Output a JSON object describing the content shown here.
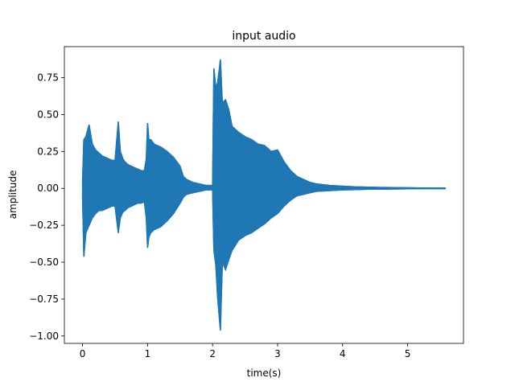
{
  "chart_data": {
    "type": "line",
    "title": "input audio",
    "xlabel": "time(s)",
    "ylabel": "amplitude",
    "xlim": [
      -0.28,
      5.86
    ],
    "ylim": [
      -1.05,
      0.96
    ],
    "x_ticks": [
      0,
      1,
      2,
      3,
      4,
      5
    ],
    "x_tick_labels": [
      "0",
      "1",
      "2",
      "3",
      "4",
      "5"
    ],
    "y_ticks": [
      -1.0,
      -0.75,
      -0.5,
      -0.25,
      0.0,
      0.25,
      0.5,
      0.75
    ],
    "y_tick_labels": [
      "−1.00",
      "−0.75",
      "−0.50",
      "−0.25",
      "0.00",
      "0.25",
      "0.50",
      "0.75"
    ],
    "grid": false,
    "series": [
      {
        "color": "#1f77b4",
        "upper": {
          "x": [
            0.0,
            0.02,
            0.05,
            0.1,
            0.15,
            0.2,
            0.25,
            0.3,
            0.35,
            0.4,
            0.45,
            0.5,
            0.55,
            0.58,
            0.62,
            0.65,
            0.7,
            0.75,
            0.8,
            0.85,
            0.9,
            0.95,
            0.98,
            1.0,
            1.02,
            1.05,
            1.1,
            1.15,
            1.2,
            1.3,
            1.4,
            1.5,
            1.55,
            1.6,
            1.7,
            1.8,
            1.9,
            2.0,
            2.02,
            2.05,
            2.08,
            2.12,
            2.15,
            2.2,
            2.25,
            2.3,
            2.4,
            2.5,
            2.6,
            2.7,
            2.8,
            2.9,
            3.0,
            3.1,
            3.2,
            3.3,
            3.4,
            3.5,
            3.6,
            3.8,
            4.0,
            4.2,
            4.4,
            4.6,
            4.8,
            5.0,
            5.2,
            5.4,
            5.58
          ],
          "y": [
            0.05,
            0.33,
            0.35,
            0.43,
            0.3,
            0.26,
            0.24,
            0.22,
            0.21,
            0.2,
            0.19,
            0.19,
            0.45,
            0.25,
            0.2,
            0.18,
            0.16,
            0.15,
            0.14,
            0.13,
            0.12,
            0.12,
            0.2,
            0.44,
            0.33,
            0.33,
            0.3,
            0.29,
            0.28,
            0.25,
            0.21,
            0.15,
            0.08,
            0.06,
            0.04,
            0.03,
            0.02,
            0.02,
            0.81,
            0.68,
            0.72,
            0.87,
            0.58,
            0.6,
            0.53,
            0.42,
            0.38,
            0.35,
            0.33,
            0.3,
            0.29,
            0.25,
            0.26,
            0.18,
            0.12,
            0.08,
            0.06,
            0.04,
            0.03,
            0.02,
            0.015,
            0.01,
            0.008,
            0.006,
            0.005,
            0.004,
            0.003,
            0.002,
            0.002
          ]
        },
        "lower": {
          "x": [
            0.0,
            0.02,
            0.05,
            0.1,
            0.15,
            0.2,
            0.25,
            0.3,
            0.35,
            0.4,
            0.45,
            0.5,
            0.55,
            0.58,
            0.62,
            0.65,
            0.7,
            0.75,
            0.8,
            0.85,
            0.9,
            0.95,
            0.98,
            1.0,
            1.02,
            1.05,
            1.1,
            1.15,
            1.2,
            1.3,
            1.4,
            1.5,
            1.55,
            1.6,
            1.7,
            1.8,
            1.9,
            2.0,
            2.02,
            2.05,
            2.08,
            2.12,
            2.15,
            2.2,
            2.25,
            2.3,
            2.4,
            2.5,
            2.6,
            2.7,
            2.8,
            2.9,
            3.0,
            3.1,
            3.2,
            3.3,
            3.4,
            3.5,
            3.6,
            3.8,
            4.0,
            4.2,
            4.4,
            4.6,
            4.8,
            5.0,
            5.2,
            5.4,
            5.58
          ],
          "y": [
            -0.05,
            -0.46,
            -0.3,
            -0.25,
            -0.2,
            -0.17,
            -0.15,
            -0.15,
            -0.14,
            -0.13,
            -0.12,
            -0.12,
            -0.3,
            -0.2,
            -0.16,
            -0.15,
            -0.13,
            -0.12,
            -0.11,
            -0.1,
            -0.1,
            -0.09,
            -0.2,
            -0.4,
            -0.33,
            -0.3,
            -0.28,
            -0.27,
            -0.26,
            -0.22,
            -0.17,
            -0.1,
            -0.06,
            -0.04,
            -0.03,
            -0.02,
            -0.01,
            -0.01,
            -0.42,
            -0.52,
            -0.75,
            -0.96,
            -0.5,
            -0.55,
            -0.48,
            -0.42,
            -0.35,
            -0.32,
            -0.3,
            -0.27,
            -0.24,
            -0.2,
            -0.17,
            -0.12,
            -0.08,
            -0.05,
            -0.04,
            -0.03,
            -0.02,
            -0.015,
            -0.01,
            -0.008,
            -0.006,
            -0.005,
            -0.004,
            -0.003,
            -0.002,
            -0.002,
            -0.002
          ]
        }
      }
    ]
  }
}
